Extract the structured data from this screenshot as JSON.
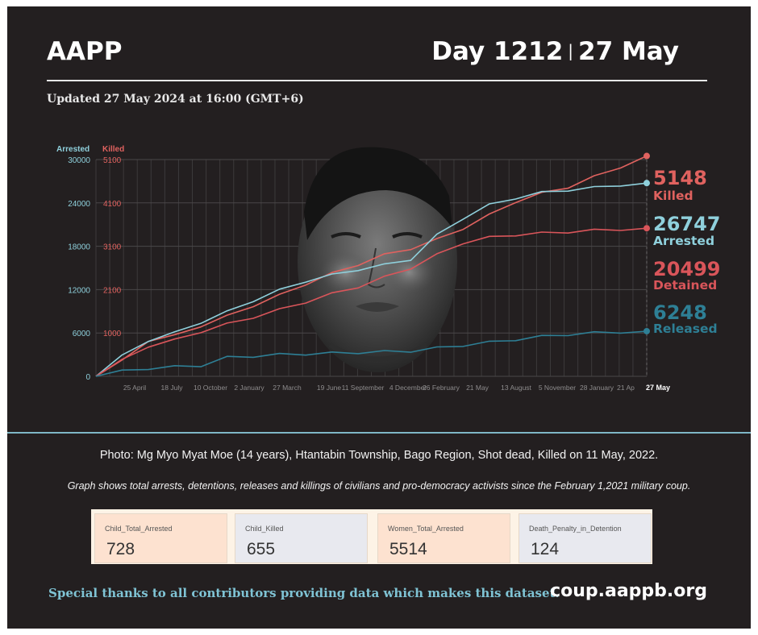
{
  "header": {
    "org": "AAPP",
    "day_label": "Day 1212",
    "date_label": "27 May",
    "updated": "Updated 27 May 2024 at 16:00 (GMT+6)"
  },
  "chart_data": {
    "type": "line",
    "y_left_label": "Arrested",
    "y_right_label": "Killed",
    "y_left_ticks": [
      0,
      6000,
      12000,
      18000,
      24000,
      30000
    ],
    "y_right_ticks": [
      "1000",
      "2100",
      "3100",
      "4100",
      "5100"
    ],
    "ylim": [
      0,
      30000
    ],
    "x_ticks": [
      "25 April",
      "18 July",
      "10 October",
      "2 January",
      "27 March",
      "19 June",
      "11 September",
      "4 December",
      "26 February",
      "21 May",
      "13 August",
      "5 November",
      "28 January",
      "21 Ap",
      "27 May"
    ],
    "grid": true,
    "series": [
      {
        "name": "Killed",
        "final": "5148",
        "color": "#e0625f",
        "values": [
          0,
          2100,
          5000,
          5600,
          7000,
          8300,
          9800,
          11200,
          12800,
          14200,
          15500,
          16800,
          17700,
          18900,
          20500,
          22300,
          24200,
          25300,
          26200,
          27600,
          29000,
          30500
        ]
      },
      {
        "name": "Arrested",
        "final": "26747",
        "color": "#8fd0dc",
        "values": [
          0,
          2800,
          5000,
          6000,
          7500,
          8900,
          10500,
          11900,
          13200,
          14000,
          14800,
          15400,
          16200,
          19500,
          21900,
          23700,
          24700,
          25400,
          25800,
          26100,
          26500,
          26747
        ]
      },
      {
        "name": "Detained",
        "final": "20499",
        "color": "#d9555a",
        "values": [
          0,
          2200,
          4200,
          5000,
          6200,
          7200,
          8200,
          9200,
          10300,
          11400,
          12400,
          13700,
          15000,
          16800,
          18500,
          19200,
          19600,
          19800,
          20000,
          20200,
          20350,
          20499
        ]
      },
      {
        "name": "Released",
        "final": "6248",
        "color": "#2e7f95",
        "values": [
          0,
          700,
          1100,
          1300,
          1500,
          2600,
          2800,
          3000,
          3100,
          3200,
          3300,
          3400,
          3500,
          3900,
          4300,
          4700,
          5100,
          5500,
          5800,
          6000,
          6150,
          6248
        ]
      }
    ]
  },
  "photo_caption": "Photo: Mg Myo Myat Moe (14 years), Htantabin Township, Bago Region, Shot dead, Killed on 11 May, 2022.",
  "graph_note": "Graph shows total arrests, detentions, releases and killings of civilians and pro-democracy activists since the February 1,2021 military coup.",
  "stats": [
    {
      "label": "Child_Total_Arrested",
      "value": "728",
      "bg": "#fde2d0"
    },
    {
      "label": "Child_Killed",
      "value": "655",
      "bg": "#e8e9ef"
    },
    {
      "label": "Women_Total_Arrested",
      "value": "5514",
      "bg": "#fde2d0"
    },
    {
      "label": "Death_Penalty_in_Detention",
      "value": "124",
      "bg": "#e8e9ef"
    }
  ],
  "footer": {
    "thanks": "Special thanks to all contributors providing data which makes this dataset.",
    "site": "coup.aappb.org"
  }
}
